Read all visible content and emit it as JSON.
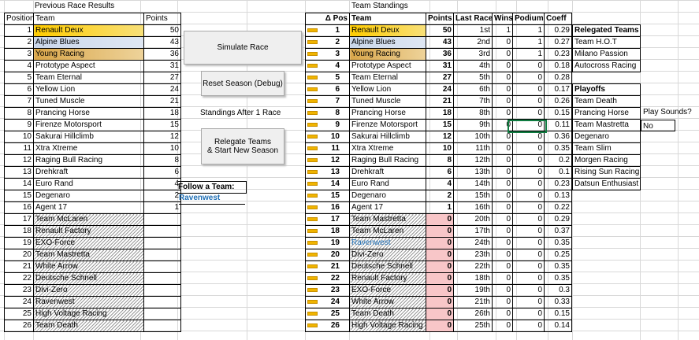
{
  "previous": {
    "title": "Previous Race Results",
    "headers": [
      "Position",
      "Team",
      "Points"
    ],
    "rows": [
      [
        "1",
        "Renault Deux",
        "50"
      ],
      [
        "2",
        "Alpine Blues",
        "43"
      ],
      [
        "3",
        "Young Racing",
        "36"
      ],
      [
        "4",
        "Prototype Aspect",
        "31"
      ],
      [
        "5",
        "Team Eternal",
        "27"
      ],
      [
        "6",
        "Yellow Lion",
        "24"
      ],
      [
        "7",
        "Tuned Muscle",
        "21"
      ],
      [
        "8",
        "Prancing Horse",
        "18"
      ],
      [
        "9",
        "Firenze Motorsport",
        "15"
      ],
      [
        "10",
        "Sakurai Hillclimb",
        "12"
      ],
      [
        "11",
        "Xtra Xtreme",
        "10"
      ],
      [
        "12",
        "Raging Bull Racing",
        "8"
      ],
      [
        "13",
        "Drehkraft",
        "6"
      ],
      [
        "14",
        "Euro Rand",
        "4"
      ],
      [
        "15",
        "Degenaro",
        "2"
      ],
      [
        "16",
        "Agent 17",
        "1"
      ],
      [
        "17",
        "Team McLaren",
        ""
      ],
      [
        "18",
        "Renault Factory",
        ""
      ],
      [
        "19",
        "EXO-Force",
        ""
      ],
      [
        "20",
        "Team Mastretta",
        ""
      ],
      [
        "21",
        "White Arrow",
        ""
      ],
      [
        "22",
        "Deutsche Schnell",
        ""
      ],
      [
        "23",
        "Divi-Zero",
        ""
      ],
      [
        "24",
        "Ravenwest",
        ""
      ],
      [
        "25",
        "High Voltage Racing",
        ""
      ],
      [
        "26",
        "Team Death",
        ""
      ]
    ]
  },
  "buttons": {
    "simulate": "Simulate Race",
    "reset": "Reset Season (Debug)",
    "relegate_line1": "Relegate Teams",
    "relegate_line2": "& Start New Season"
  },
  "standings_label": "Standings After 1 Race",
  "follow": {
    "label": "Follow a Team:",
    "value": "Ravenwest"
  },
  "standings": {
    "title": "Team Standings",
    "headers": [
      "Δ Pos",
      "Team",
      "Points",
      "Last Race",
      "Wins",
      "Podiums",
      "Coeff"
    ],
    "rows": [
      [
        "1",
        "Renault Deux",
        "50",
        "1st",
        "1",
        "1",
        "0.29"
      ],
      [
        "2",
        "Alpine Blues",
        "43",
        "2nd",
        "0",
        "1",
        "0.27"
      ],
      [
        "3",
        "Young Racing",
        "36",
        "3rd",
        "0",
        "1",
        "0.23"
      ],
      [
        "4",
        "Prototype Aspect",
        "31",
        "4th",
        "0",
        "0",
        "0.18"
      ],
      [
        "5",
        "Team Eternal",
        "27",
        "5th",
        "0",
        "0",
        "0.28"
      ],
      [
        "6",
        "Yellow Lion",
        "24",
        "6th",
        "0",
        "0",
        "0.17"
      ],
      [
        "7",
        "Tuned Muscle",
        "21",
        "7th",
        "0",
        "0",
        "0.26"
      ],
      [
        "8",
        "Prancing Horse",
        "18",
        "8th",
        "0",
        "0",
        "0.15"
      ],
      [
        "9",
        "Firenze Motorsport",
        "15",
        "9th",
        "0",
        "0",
        "0.11"
      ],
      [
        "10",
        "Sakurai Hillclimb",
        "12",
        "10th",
        "0",
        "0",
        "0.36"
      ],
      [
        "11",
        "Xtra Xtreme",
        "10",
        "11th",
        "0",
        "0",
        "0.35"
      ],
      [
        "12",
        "Raging Bull Racing",
        "8",
        "12th",
        "0",
        "0",
        "0.2"
      ],
      [
        "13",
        "Drehkraft",
        "6",
        "13th",
        "0",
        "0",
        "0.1"
      ],
      [
        "14",
        "Euro Rand",
        "4",
        "14th",
        "0",
        "0",
        "0.23"
      ],
      [
        "15",
        "Degenaro",
        "2",
        "15th",
        "0",
        "0",
        "0.13"
      ],
      [
        "16",
        "Agent 17",
        "1",
        "16th",
        "0",
        "0",
        "0.22"
      ],
      [
        "17",
        "Team Mastretta",
        "0",
        "20th",
        "0",
        "0",
        "0.29"
      ],
      [
        "18",
        "Team McLaren",
        "0",
        "17th",
        "0",
        "0",
        "0.37"
      ],
      [
        "19",
        "Ravenwest",
        "0",
        "24th",
        "0",
        "0",
        "0.35"
      ],
      [
        "20",
        "Divi-Zero",
        "0",
        "23th",
        "0",
        "0",
        "0.25"
      ],
      [
        "21",
        "Deutsche Schnell",
        "0",
        "22th",
        "0",
        "0",
        "0.35"
      ],
      [
        "22",
        "Renault Factory",
        "0",
        "18th",
        "0",
        "0",
        "0.35"
      ],
      [
        "23",
        "EXO-Force",
        "0",
        "19th",
        "0",
        "0",
        "0.3"
      ],
      [
        "24",
        "White Arrow",
        "0",
        "21th",
        "0",
        "0",
        "0.33"
      ],
      [
        "25",
        "Team Death",
        "0",
        "26th",
        "0",
        "0",
        "0.15"
      ],
      [
        "26",
        "High Voltage Racing",
        "0",
        "25th",
        "0",
        "0",
        "0.14"
      ]
    ]
  },
  "side": {
    "relegated_title": "Relegated Teams",
    "relegated": [
      "Team H.O.T",
      "Milano Passion",
      "Autocross Racing"
    ],
    "playoffs_title": "Playoffs",
    "playoffs": [
      "Team Death",
      "Prancing Horse",
      "Team Mastretta",
      "Degenaro",
      "Team Slim",
      "Morgen Racing",
      "Rising Sun Racing",
      "Datsun Enthusiast"
    ]
  },
  "sounds": {
    "label": "Play Sounds?",
    "value": "No"
  }
}
